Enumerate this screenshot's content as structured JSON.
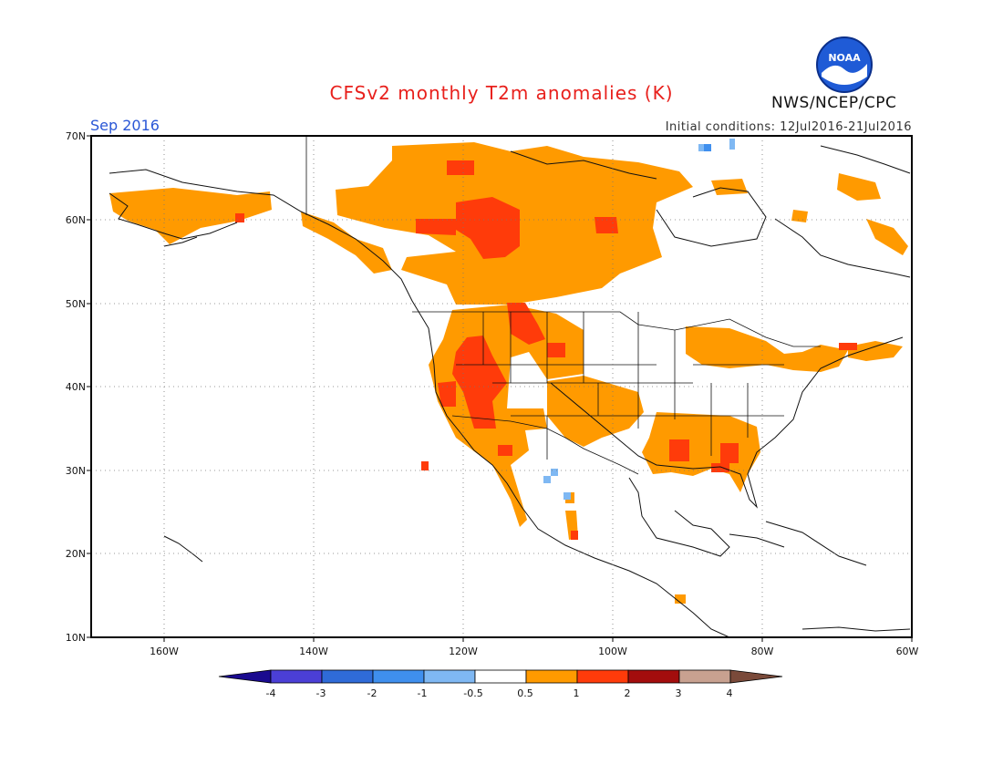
{
  "title": "CFSv2 monthly T2m anomalies (K)",
  "organization": "NWS/NCEP/CPC",
  "logo_text": "NOAA",
  "forecast_month": "Sep 2016",
  "initial_conditions": "Initial conditions: 12Jul2016-21Jul2016",
  "lat_ticks": [
    "70N",
    "60N",
    "50N",
    "40N",
    "30N",
    "20N",
    "10N"
  ],
  "lon_ticks": [
    "160W",
    "140W",
    "120W",
    "100W",
    "80W",
    "60W"
  ],
  "colorbar": {
    "labels": [
      "-4",
      "-3",
      "-2",
      "-1",
      "-0.5",
      "0.5",
      "1",
      "2",
      "3",
      "4"
    ],
    "colors": [
      "#1a0a8f",
      "#4b3fd6",
      "#2f6bd8",
      "#3f8fee",
      "#7fb8f3",
      "#ffffff",
      "#ff9a00",
      "#ff3b0a",
      "#a30d0d",
      "#c8a190",
      "#7a4a3a"
    ]
  },
  "map_data": {
    "legend_colors": {
      "warm_0_5_1": "#ff9a00",
      "warm_1_2": "#ff3b0a",
      "cool_neg1_neg0_5": "#7fb8f3",
      "cool_neg2_neg1": "#3f8fee"
    }
  }
}
